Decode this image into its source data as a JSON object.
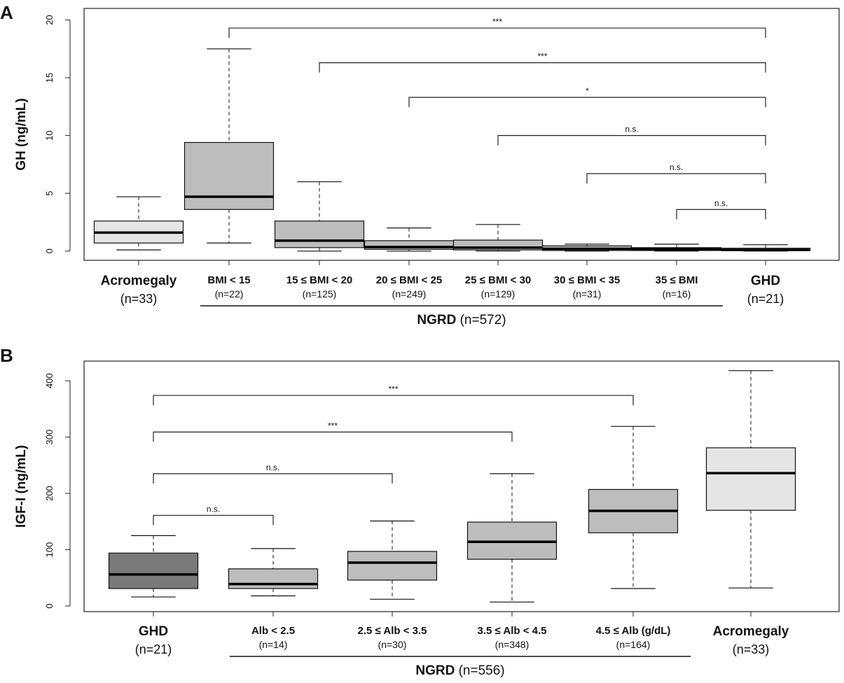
{
  "chart_data": [
    {
      "panel_label": "A",
      "type": "boxplot",
      "ylabel": "GH (ng/mL)",
      "ylim": [
        -0.8,
        21
      ],
      "yticks": [
        0,
        5,
        10,
        15,
        20
      ],
      "groups": [
        {
          "label": "Acromegaly",
          "n_label": "(n=33)",
          "bold": true,
          "min": 0.1,
          "q1": 0.7,
          "median": 1.6,
          "q3": 2.6,
          "max": 4.7,
          "fill": "#e5e5e5"
        },
        {
          "label": "BMI < 15",
          "n_label": "(n=22)",
          "bold": false,
          "min": 0.7,
          "q1": 3.6,
          "median": 4.7,
          "q3": 9.4,
          "max": 17.5,
          "fill": "#bdbdbd"
        },
        {
          "label": "15 ≤ BMI < 20",
          "n_label": "(n=125)",
          "bold": false,
          "min": 0.0,
          "q1": 0.3,
          "median": 0.9,
          "q3": 2.6,
          "max": 6.0,
          "fill": "#bdbdbd"
        },
        {
          "label": "20 ≤ BMI < 25",
          "n_label": "(n=249)",
          "bold": false,
          "min": 0.0,
          "q1": 0.15,
          "median": 0.35,
          "q3": 0.9,
          "max": 2.0,
          "fill": "#bdbdbd"
        },
        {
          "label": "25 ≤ BMI < 30",
          "n_label": "(n=129)",
          "bold": false,
          "min": 0.0,
          "q1": 0.1,
          "median": 0.3,
          "q3": 0.95,
          "max": 2.3,
          "fill": "#bdbdbd"
        },
        {
          "label": "30 ≤ BMI < 35",
          "n_label": "(n=31)",
          "bold": false,
          "min": 0.0,
          "q1": 0.05,
          "median": 0.2,
          "q3": 0.45,
          "max": 0.6,
          "fill": "#bdbdbd"
        },
        {
          "label": "35 ≤ BMI",
          "n_label": "(n=16)",
          "bold": false,
          "min": 0.0,
          "q1": 0.05,
          "median": 0.15,
          "q3": 0.3,
          "max": 0.6,
          "fill": "#bdbdbd"
        },
        {
          "label": "GHD",
          "n_label": "(n=21)",
          "bold": true,
          "min": 0.0,
          "q1": 0.05,
          "median": 0.1,
          "q3": 0.25,
          "max": 0.55,
          "fill": "#bdbdbd"
        }
      ],
      "comparisons": [
        {
          "from": 1,
          "to": 7,
          "y": 19.3,
          "label": "***"
        },
        {
          "from": 2,
          "to": 7,
          "y": 16.3,
          "label": "***"
        },
        {
          "from": 3,
          "to": 7,
          "y": 13.3,
          "label": "*"
        },
        {
          "from": 4,
          "to": 7,
          "y": 10.0,
          "label": "n.s."
        },
        {
          "from": 5,
          "to": 7,
          "y": 6.7,
          "label": "n.s."
        },
        {
          "from": 6,
          "to": 7,
          "y": 3.6,
          "label": "n.s."
        }
      ],
      "group_bracket": {
        "label": "NGRD",
        "n_label": "(n=572)",
        "from": 1,
        "to": 6
      }
    },
    {
      "panel_label": "B",
      "type": "boxplot",
      "ylabel": "IGF-I (ng/mL)",
      "ylim": [
        -10,
        435
      ],
      "yticks": [
        0,
        100,
        200,
        300,
        400
      ],
      "groups": [
        {
          "label": "GHD",
          "n_label": "(n=21)",
          "bold": true,
          "min": 16,
          "q1": 31,
          "median": 56,
          "q3": 94,
          "max": 125,
          "fill": "#7a7a7a"
        },
        {
          "label": "Alb < 2.5",
          "n_label": "(n=14)",
          "bold": false,
          "min": 18,
          "q1": 31,
          "median": 39,
          "q3": 66,
          "max": 102,
          "fill": "#bdbdbd"
        },
        {
          "label": "2.5 ≤ Alb < 3.5",
          "n_label": "(n=30)",
          "bold": false,
          "min": 12,
          "q1": 46,
          "median": 77,
          "q3": 97,
          "max": 151,
          "fill": "#bdbdbd"
        },
        {
          "label": "3.5 ≤ Alb < 4.5",
          "n_label": "(n=348)",
          "bold": false,
          "min": 7,
          "q1": 83,
          "median": 114,
          "q3": 149,
          "max": 235,
          "fill": "#bdbdbd"
        },
        {
          "label": "4.5  ≤ Alb (g/dL)",
          "n_label": "(n=164)",
          "bold": false,
          "min": 31,
          "q1": 130,
          "median": 169,
          "q3": 207,
          "max": 319,
          "fill": "#bdbdbd"
        },
        {
          "label": "Acromegaly",
          "n_label": "(n=33)",
          "bold": true,
          "min": 32,
          "q1": 170,
          "median": 236,
          "q3": 281,
          "max": 418,
          "fill": "#e5e5e5"
        }
      ],
      "comparisons": [
        {
          "from": 0,
          "to": 4,
          "y": 374,
          "label": "***"
        },
        {
          "from": 0,
          "to": 3,
          "y": 309,
          "label": "***"
        },
        {
          "from": 0,
          "to": 2,
          "y": 235,
          "label": "n.s."
        },
        {
          "from": 0,
          "to": 1,
          "y": 161,
          "label": "n.s."
        }
      ],
      "group_bracket": {
        "label": "NGRD",
        "n_label": "(n=556)",
        "from": 1,
        "to": 4
      }
    }
  ]
}
